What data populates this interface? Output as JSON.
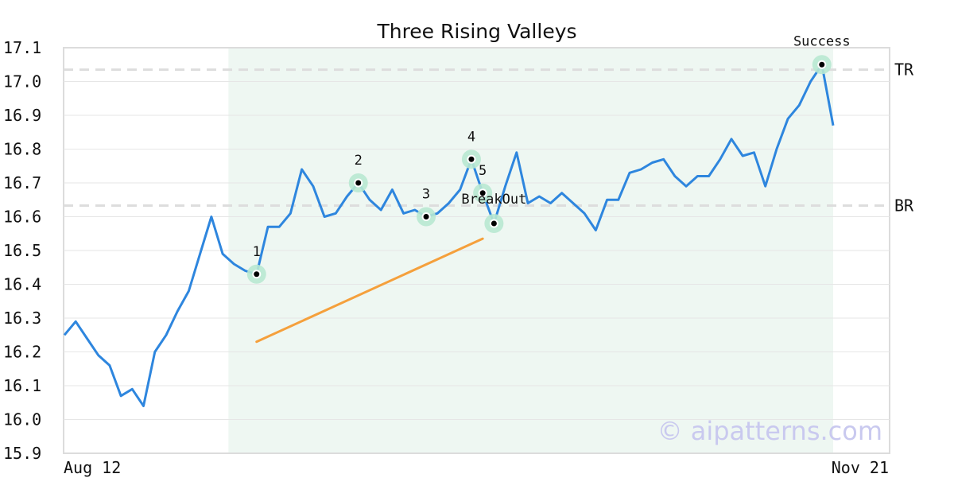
{
  "chart_data": {
    "type": "line",
    "title": "Three Rising Valleys",
    "xlabel": "",
    "ylabel": "",
    "x_start_label": "Aug 12",
    "x_end_label": "Nov 21",
    "ylim": [
      15.9,
      17.1
    ],
    "yticks": [
      "15.9",
      "16.0",
      "16.1",
      "16.2",
      "16.3",
      "16.4",
      "16.5",
      "16.6",
      "16.7",
      "16.8",
      "16.9",
      "17.0",
      "17.1"
    ],
    "grid": true,
    "series": [
      {
        "values": [
          16.25,
          16.29,
          16.24,
          16.19,
          16.16,
          16.07,
          16.09,
          16.04,
          16.2,
          16.25,
          16.32,
          16.38,
          16.49,
          16.6,
          16.49,
          16.46,
          16.44,
          16.43,
          16.57,
          16.57,
          16.61,
          16.74,
          16.69,
          16.6,
          16.61,
          16.66,
          16.7,
          16.65,
          16.62,
          16.68,
          16.61,
          16.62,
          16.6,
          16.61,
          16.64,
          16.68,
          16.77,
          16.67,
          16.58,
          16.69,
          16.79,
          16.64,
          16.66,
          16.64,
          16.67,
          16.64,
          16.61,
          16.56,
          16.65,
          16.65,
          16.73,
          16.74,
          16.76,
          16.77,
          16.72,
          16.69,
          16.72,
          16.72,
          16.77,
          16.83,
          16.78,
          16.79,
          16.69,
          16.8,
          16.89,
          16.93,
          17.0,
          17.05,
          16.87
        ],
        "color": "#2e86de"
      }
    ],
    "pattern_region": {
      "start_index": 15,
      "end_index": 68,
      "color": "#eef7f2"
    },
    "reference_lines": [
      {
        "label": "TR",
        "value": 17.035
      },
      {
        "label": "BR",
        "value": 16.633
      }
    ],
    "trendline": {
      "start_index": 17,
      "start_value": 16.23,
      "end_index": 37,
      "end_value": 16.535,
      "color": "#f5a03c"
    },
    "annotations": [
      {
        "label": "1",
        "index": 17,
        "value": 16.43
      },
      {
        "label": "2",
        "index": 26,
        "value": 16.7
      },
      {
        "label": "3",
        "index": 32,
        "value": 16.6
      },
      {
        "label": "4",
        "index": 36,
        "value": 16.77
      },
      {
        "label": "5",
        "index": 37,
        "value": 16.67
      },
      {
        "label": "BreakOut",
        "index": 38,
        "value": 16.58
      },
      {
        "label": "Success",
        "index": 67,
        "value": 17.05
      }
    ],
    "watermark": "© aipatterns.com"
  }
}
